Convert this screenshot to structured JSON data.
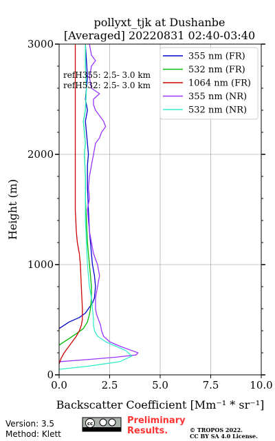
{
  "chart_data": {
    "type": "line",
    "title_line1": "pollyxt_tjk at Dushanbe",
    "title_line2": "[Averaged] 20220831 02:40-03:40",
    "xlabel": "Backscatter Coefficient [Mm⁻¹ * sr⁻¹]",
    "ylabel": "Height (m)",
    "xlim": [
      0,
      10
    ],
    "ylim": [
      0,
      3000
    ],
    "x_ticks": [
      0,
      2.5,
      5,
      7.5,
      10
    ],
    "x_tick_labels": [
      "0.0",
      "2.5",
      "5.0",
      "7.5",
      "10.0"
    ],
    "y_ticks": [
      0,
      1000,
      2000,
      3000
    ],
    "y_tick_labels": [
      "0",
      "1000",
      "2000",
      "3000"
    ],
    "grid": true,
    "legend_position": "top-right",
    "annotations": [
      "refH355:  2.5- 3.0 km",
      "refH532:  2.5- 3.0 km"
    ],
    "series": [
      {
        "name": "355 nm (FR)",
        "color": "#0000cc",
        "x": [
          0.0,
          0.5,
          1.0,
          1.3,
          1.45,
          1.65,
          1.75,
          1.8,
          1.75,
          1.65,
          1.6,
          1.55,
          1.5,
          1.45,
          1.4,
          1.4,
          1.45,
          1.4,
          1.35,
          1.3,
          1.4,
          1.3,
          1.35,
          1.4,
          1.35,
          1.3
        ],
        "y": [
          420,
          480,
          520,
          560,
          600,
          650,
          700,
          800,
          900,
          1000,
          1100,
          1200,
          1300,
          1500,
          1700,
          1900,
          2000,
          2100,
          2200,
          2300,
          2400,
          2500,
          2600,
          2700,
          2850,
          3000
        ]
      },
      {
        "name": "532 nm (FR)",
        "color": "#00bb00",
        "x": [
          0.0,
          0.5,
          0.9,
          1.2,
          1.4,
          1.5,
          1.55,
          1.6,
          1.6,
          1.55,
          1.5,
          1.45,
          1.4,
          1.35,
          1.3,
          1.3,
          1.25,
          1.3,
          1.2,
          1.3,
          1.35,
          1.3,
          1.3
        ],
        "y": [
          270,
          330,
          380,
          420,
          480,
          550,
          600,
          700,
          800,
          900,
          1000,
          1100,
          1200,
          1400,
          1600,
          1800,
          2000,
          2100,
          2300,
          2400,
          2600,
          2800,
          3000
        ]
      },
      {
        "name": "1064 nm (FR)",
        "color": "#cc0000",
        "x": [
          0.0,
          0.1,
          0.25,
          0.45,
          0.65,
          0.85,
          1.0,
          1.1,
          1.15,
          1.15,
          1.1,
          1.05,
          1.0,
          0.9,
          0.85,
          0.8,
          0.8,
          0.8,
          0.8,
          0.8,
          0.8,
          0.8,
          0.8,
          0.8
        ],
        "y": [
          100,
          150,
          200,
          250,
          300,
          350,
          400,
          450,
          500,
          600,
          800,
          1000,
          1100,
          1200,
          1300,
          1500,
          1700,
          1900,
          2100,
          2300,
          2500,
          2700,
          2900,
          3000
        ]
      },
      {
        "name": "355 nm (NR)",
        "color": "#9933ff",
        "x": [
          0.05,
          1.5,
          2.8,
          3.8,
          3.9,
          3.6,
          3.0,
          2.5,
          2.2,
          2.1,
          2.05,
          1.95,
          1.85,
          1.8,
          1.8,
          1.9,
          1.95,
          2.0,
          1.95,
          1.9,
          1.8,
          1.7,
          1.6,
          1.5,
          1.45,
          1.4,
          1.5,
          1.45,
          1.5,
          1.6,
          1.7,
          1.8,
          2.0,
          2.1,
          2.3,
          2.2,
          2.0,
          1.8,
          1.7,
          1.7,
          2.0,
          1.6,
          1.5,
          1.6,
          1.8,
          1.6,
          1.5
        ],
        "y": [
          120,
          140,
          160,
          180,
          200,
          220,
          260,
          300,
          350,
          400,
          450,
          500,
          550,
          600,
          700,
          800,
          850,
          900,
          950,
          1000,
          1050,
          1100,
          1200,
          1300,
          1400,
          1500,
          1600,
          1700,
          1800,
          1900,
          2000,
          2100,
          2150,
          2200,
          2250,
          2300,
          2350,
          2400,
          2450,
          2500,
          2550,
          2600,
          2700,
          2800,
          2850,
          2900,
          3000
        ]
      },
      {
        "name": "532 nm (NR)",
        "color": "#33eecc",
        "x": [
          0.0,
          1.5,
          3.0,
          3.6,
          3.3,
          2.8,
          2.3,
          1.9,
          1.75,
          1.7,
          1.7,
          1.65,
          1.6,
          1.5,
          1.45,
          1.4,
          1.35,
          1.3,
          1.3,
          1.3,
          1.25,
          1.3,
          1.2,
          1.3,
          1.35,
          1.3,
          1.3
        ],
        "y": [
          50,
          80,
          120,
          170,
          220,
          260,
          300,
          350,
          400,
          450,
          500,
          600,
          700,
          800,
          900,
          1000,
          1200,
          1400,
          1600,
          1800,
          2000,
          2100,
          2300,
          2400,
          2600,
          2800,
          3000
        ]
      }
    ]
  },
  "footer": {
    "version": "Version: 3.5",
    "method": "Method: Klett",
    "license_badge": "cc-by-sa-badge",
    "preliminary_line1": "Preliminary",
    "preliminary_line2": "Results.",
    "copyright_line1": "© TROPOS 2022.",
    "copyright_line2": "CC BY SA 4.0 License.",
    "preliminary_color": "#ff3333"
  }
}
